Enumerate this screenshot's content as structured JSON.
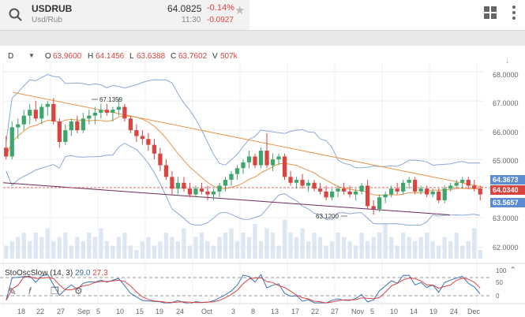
{
  "header": {
    "symbol": "USDRUB",
    "subtitle": "Usd/Rub",
    "price": "64.0825",
    "change_pct": "-0.14%",
    "time": "11:30",
    "change_abs": "-0.0927"
  },
  "chart_header": {
    "period": "D",
    "open_label": "O",
    "open": "63.9600",
    "high_label": "H",
    "high": "64.1456",
    "low_label": "L",
    "low": "63.6388",
    "close_label": "C",
    "close": "63.7602",
    "volume_label": "V",
    "volume": "507k"
  },
  "price_axis": {
    "ticks": [
      "68.0000",
      "67.0000",
      "66.0000",
      "65.0000",
      "64.0000",
      "63.0000",
      "62.0000"
    ],
    "tag_upper": "64.3673",
    "tag_current": "64.0340",
    "tag_lower": "63.5657"
  },
  "annotations": {
    "high_label": "67.1359",
    "low_label": "63.1200"
  },
  "oscillator": {
    "name": "StoOscSlow (14, 3)",
    "k": "29.0",
    "d": "27.3",
    "ticks": [
      "100",
      "50",
      "0"
    ]
  },
  "x_axis": {
    "labels": [
      "18",
      "22",
      "27",
      "Sep",
      "5",
      "10",
      "15",
      "19",
      "24",
      "Oct",
      "3",
      "8",
      "13",
      "17",
      "22",
      "27",
      "Nov",
      "5",
      "10",
      "14",
      "19",
      "24",
      "Dec"
    ]
  },
  "colors": {
    "up": "#3fa66b",
    "down": "#d9443f",
    "band": "#8aa9d6",
    "ma": "#e8954a",
    "trend_upper": "#e8954a",
    "trend_lower": "#6b2a5a",
    "volume": "#dde6f3"
  },
  "chart_data": {
    "type": "candlestick",
    "ylim": [
      61.6,
      68.3
    ],
    "candles": [
      [
        65.4,
        65.8,
        65.0,
        65.1
      ],
      [
        65.1,
        66.3,
        65.0,
        66.1
      ],
      [
        66.1,
        66.4,
        65.7,
        66.2
      ],
      [
        66.2,
        66.7,
        66.0,
        66.5
      ],
      [
        66.5,
        66.9,
        66.2,
        66.7
      ],
      [
        66.7,
        67.0,
        66.3,
        66.4
      ],
      [
        66.4,
        66.9,
        66.2,
        66.8
      ],
      [
        66.8,
        67.0,
        66.5,
        66.9
      ],
      [
        66.9,
        67.1,
        66.2,
        66.3
      ],
      [
        66.3,
        66.4,
        65.4,
        65.6
      ],
      [
        65.6,
        66.2,
        65.5,
        66.0
      ],
      [
        66.0,
        66.4,
        65.8,
        66.3
      ],
      [
        66.3,
        66.5,
        65.9,
        66.0
      ],
      [
        66.0,
        66.6,
        65.9,
        66.4
      ],
      [
        66.4,
        66.7,
        66.2,
        66.5
      ],
      [
        66.5,
        66.8,
        66.2,
        66.6
      ],
      [
        66.6,
        66.9,
        66.4,
        66.7
      ],
      [
        66.7,
        66.9,
        66.5,
        66.6
      ],
      [
        66.6,
        66.8,
        66.3,
        66.7
      ],
      [
        66.7,
        67.1,
        66.5,
        66.8
      ],
      [
        66.8,
        66.9,
        66.3,
        66.4
      ],
      [
        66.4,
        66.5,
        65.9,
        66.0
      ],
      [
        66.0,
        66.2,
        65.6,
        65.8
      ],
      [
        65.8,
        66.0,
        65.5,
        65.7
      ],
      [
        65.7,
        65.9,
        65.3,
        65.5
      ],
      [
        65.5,
        65.7,
        65.0,
        65.2
      ],
      [
        65.2,
        65.4,
        64.6,
        64.8
      ],
      [
        64.8,
        65.0,
        64.3,
        64.4
      ],
      [
        64.4,
        64.6,
        63.8,
        64.0
      ],
      [
        64.0,
        64.4,
        63.8,
        64.2
      ],
      [
        64.2,
        64.4,
        63.9,
        64.0
      ],
      [
        64.0,
        64.2,
        63.7,
        63.8
      ],
      [
        63.8,
        64.1,
        63.7,
        64.0
      ],
      [
        64.0,
        64.2,
        63.8,
        63.9
      ],
      [
        63.9,
        64.1,
        63.6,
        63.8
      ],
      [
        63.8,
        64.0,
        63.6,
        63.9
      ],
      [
        63.9,
        64.2,
        63.7,
        64.1
      ],
      [
        64.1,
        64.4,
        63.9,
        64.3
      ],
      [
        64.3,
        64.6,
        64.1,
        64.5
      ],
      [
        64.5,
        64.8,
        64.3,
        64.7
      ],
      [
        64.7,
        65.0,
        64.5,
        64.9
      ],
      [
        64.9,
        65.3,
        64.7,
        65.1
      ],
      [
        65.1,
        65.2,
        64.7,
        64.8
      ],
      [
        64.8,
        65.4,
        64.7,
        65.3
      ],
      [
        65.3,
        65.9,
        64.7,
        64.8
      ],
      [
        64.8,
        65.2,
        64.6,
        65.0
      ],
      [
        65.0,
        65.2,
        64.8,
        65.1
      ],
      [
        65.1,
        65.2,
        64.3,
        64.4
      ],
      [
        64.4,
        64.6,
        64.1,
        64.2
      ],
      [
        64.2,
        64.4,
        64.0,
        64.3
      ],
      [
        64.3,
        64.5,
        64.0,
        64.1
      ],
      [
        64.1,
        64.3,
        63.9,
        64.2
      ],
      [
        64.2,
        64.3,
        63.9,
        64.0
      ],
      [
        64.0,
        64.2,
        63.8,
        63.9
      ],
      [
        63.9,
        64.1,
        63.6,
        63.7
      ],
      [
        63.7,
        64.0,
        63.6,
        63.9
      ],
      [
        63.9,
        64.1,
        63.7,
        64.0
      ],
      [
        64.0,
        64.2,
        63.8,
        63.9
      ],
      [
        63.9,
        64.1,
        63.7,
        63.8
      ],
      [
        63.8,
        64.0,
        63.6,
        63.9
      ],
      [
        63.9,
        64.2,
        63.8,
        64.1
      ],
      [
        64.1,
        64.3,
        63.3,
        63.4
      ],
      [
        63.4,
        63.6,
        63.1,
        63.3
      ],
      [
        63.3,
        63.8,
        63.2,
        63.7
      ],
      [
        63.7,
        63.9,
        63.5,
        63.8
      ],
      [
        63.8,
        64.1,
        63.7,
        64.0
      ],
      [
        64.0,
        64.2,
        63.8,
        63.9
      ],
      [
        63.9,
        64.3,
        63.8,
        64.2
      ],
      [
        64.2,
        64.4,
        64.0,
        64.3
      ],
      [
        64.3,
        64.4,
        63.8,
        63.9
      ],
      [
        63.9,
        64.1,
        63.8,
        64.0
      ],
      [
        64.0,
        64.1,
        63.7,
        63.8
      ],
      [
        63.8,
        64.0,
        63.7,
        63.9
      ],
      [
        63.9,
        64.0,
        63.5,
        63.6
      ],
      [
        63.6,
        64.1,
        63.5,
        64.0
      ],
      [
        64.0,
        64.2,
        63.9,
        64.1
      ],
      [
        64.1,
        64.3,
        64.0,
        64.2
      ],
      [
        64.2,
        64.4,
        64.0,
        64.3
      ],
      [
        64.3,
        64.4,
        64.0,
        64.1
      ],
      [
        64.1,
        64.3,
        63.9,
        64.0
      ],
      [
        64.0,
        64.1,
        63.6,
        63.8
      ]
    ],
    "volume": [
      0.3,
      0.4,
      0.5,
      0.6,
      0.4,
      0.6,
      0.5,
      0.7,
      0.4,
      0.5,
      0.6,
      0.3,
      0.5,
      0.4,
      0.6,
      0.5,
      0.7,
      0.4,
      0.3,
      0.5,
      0.6,
      0.3,
      0.2,
      0.4,
      0.5,
      0.3,
      0.4,
      0.6,
      0.5,
      0.4,
      0.7,
      0.3,
      0.5,
      0.6,
      0.4,
      0.3,
      0.5,
      0.6,
      0.7,
      0.4,
      0.6,
      0.5,
      0.8,
      0.4,
      0.7,
      0.6,
      0.3,
      0.9,
      0.6,
      0.5,
      0.7,
      0.4,
      0.6,
      0.5,
      0.3,
      0.4,
      0.6,
      0.5,
      0.4,
      0.3,
      0.6,
      0.4,
      0.5,
      0.6,
      0.8,
      0.5,
      0.3,
      0.6,
      0.5,
      0.4,
      0.5,
      0.6,
      0.4,
      0.3,
      0.5,
      0.4,
      0.6,
      0.3,
      0.4,
      0.7,
      0.2
    ]
  }
}
